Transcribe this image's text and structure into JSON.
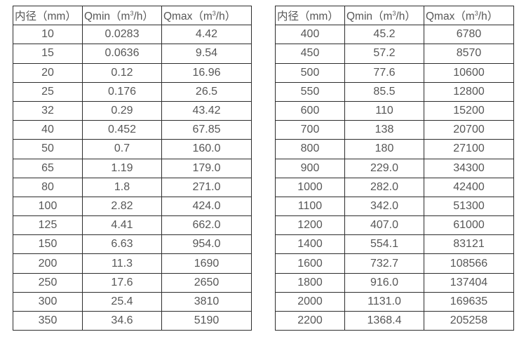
{
  "page": {
    "background_color": "#ffffff",
    "border_color": "#2d2d2d",
    "text_color": "#575757"
  },
  "header_parts": {
    "diameter": "内径（mm）",
    "qmin": [
      "Qmin（m",
      "3",
      "/h）"
    ],
    "qmax": [
      "Qmax（m",
      "3",
      "/h）"
    ]
  },
  "chart_data": [
    {
      "type": "table",
      "title": "",
      "columns": [
        "内径（mm）",
        "Qmin（m³/h）",
        "Qmax（m³/h）"
      ],
      "rows": [
        [
          "10",
          "0.0283",
          "4.42"
        ],
        [
          "15",
          "0.0636",
          "9.54"
        ],
        [
          "20",
          "0.12",
          "16.96"
        ],
        [
          "25",
          "0.176",
          "26.5"
        ],
        [
          "32",
          "0.29",
          "43.42"
        ],
        [
          "40",
          "0.452",
          "67.85"
        ],
        [
          "50",
          "0.7",
          "160.0"
        ],
        [
          "65",
          "1.19",
          "179.0"
        ],
        [
          "80",
          "1.8",
          "271.0"
        ],
        [
          "100",
          "2.82",
          "424.0"
        ],
        [
          "125",
          "4.41",
          "662.0"
        ],
        [
          "150",
          "6.63",
          "954.0"
        ],
        [
          "200",
          "11.3",
          "1690"
        ],
        [
          "250",
          "17.6",
          "2650"
        ],
        [
          "300",
          "25.4",
          "3810"
        ],
        [
          "350",
          "34.6",
          "5190"
        ]
      ]
    },
    {
      "type": "table",
      "title": "",
      "columns": [
        "内径（mm）",
        "Qmin（m³/h）",
        "Qmax（m³/h）"
      ],
      "rows": [
        [
          "400",
          "45.2",
          "6780"
        ],
        [
          "450",
          "57.2",
          "8570"
        ],
        [
          "500",
          "77.6",
          "10600"
        ],
        [
          "550",
          "85.5",
          "12800"
        ],
        [
          "600",
          "110",
          "15200"
        ],
        [
          "700",
          "138",
          "20700"
        ],
        [
          "800",
          "180",
          "27100"
        ],
        [
          "900",
          "229.0",
          "34300"
        ],
        [
          "1000",
          "282.0",
          "42400"
        ],
        [
          "1100",
          "342.0",
          "51300"
        ],
        [
          "1200",
          "407.0",
          "61000"
        ],
        [
          "1400",
          "554.1",
          "83121"
        ],
        [
          "1600",
          "732.7",
          "108566"
        ],
        [
          "1800",
          "916.0",
          "137404"
        ],
        [
          "2000",
          "1131.0",
          "169635"
        ],
        [
          "2200",
          "1368.4",
          "205258"
        ]
      ]
    }
  ]
}
